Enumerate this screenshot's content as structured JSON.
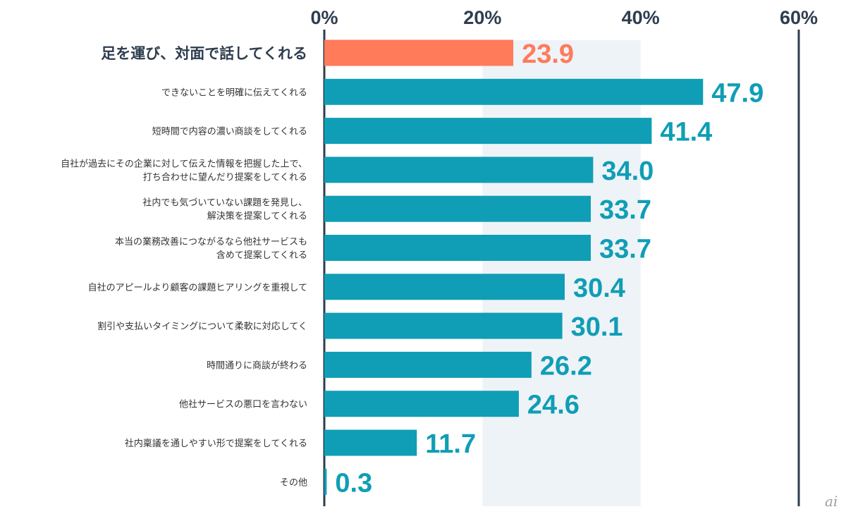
{
  "chart_data": {
    "type": "bar",
    "orientation": "horizontal",
    "unit": "%",
    "xlim": [
      0,
      60
    ],
    "ticks": [
      0,
      20,
      40,
      60
    ],
    "tick_labels": [
      "0%",
      "20%",
      "40%",
      "60%"
    ],
    "highlight_band": [
      20,
      40
    ],
    "categories": [
      [
        "足を運び、対面で話してくれる"
      ],
      [
        "できないことを明確に伝えてくれる"
      ],
      [
        "短時間で内容の濃い商談をしてくれる"
      ],
      [
        "自社が過去にその企業に対して伝えた情報を把握した上で、",
        "打ち合わせに望んだり提案をしてくれる"
      ],
      [
        "社内でも気づいていない課題を発見し、",
        "解決策を提案してくれる"
      ],
      [
        "本当の業務改善につながるなら他社サービスも",
        "含めて提案してくれる"
      ],
      [
        "自社のアピールより顧客の課題ヒアリングを重視して"
      ],
      [
        "割引や支払いタイミングについて柔軟に対応してく"
      ],
      [
        "時間通りに商談が終わる"
      ],
      [
        "他社サービスの悪口を言わない"
      ],
      [
        "社内稟議を通しやすい形で提案をしてくれる"
      ],
      [
        "その他"
      ]
    ],
    "values": [
      23.9,
      47.9,
      41.4,
      34.0,
      33.7,
      33.7,
      30.4,
      30.1,
      26.2,
      24.6,
      11.7,
      0.3
    ],
    "value_labels": [
      "23.9",
      "47.9",
      "41.4",
      "34.0",
      "33.7",
      "33.7",
      "30.4",
      "30.1",
      "26.2",
      "24.6",
      "11.7",
      "0.3"
    ],
    "highlight_index": 0
  },
  "colors": {
    "highlight": "#ff7b5a",
    "bar": "#0f9eb5",
    "axis": "#2e3d4f",
    "band": "#eef3f8",
    "label": "#333333"
  },
  "watermark": "ai"
}
